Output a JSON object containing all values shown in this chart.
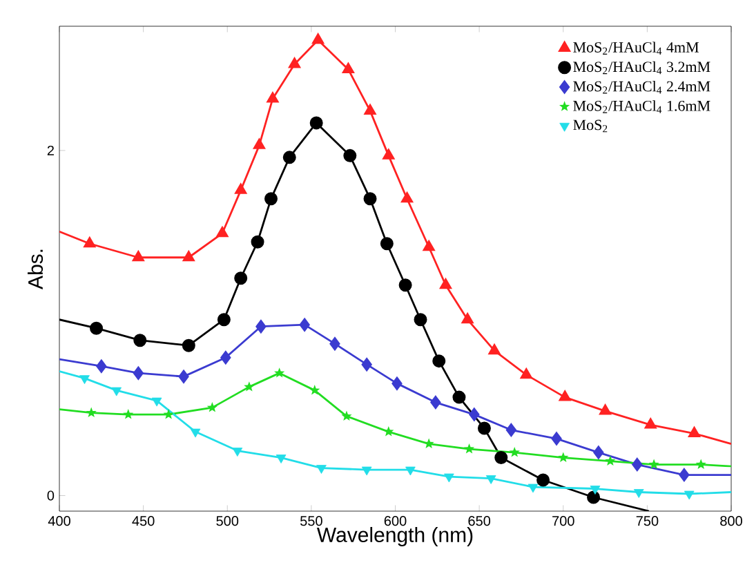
{
  "chart_data": {
    "type": "line",
    "xlabel": "Wavelength (nm)",
    "ylabel": "Abs.",
    "xlim": [
      400,
      800
    ],
    "ylim": [
      -0.09,
      2.72
    ],
    "xticks": [
      400,
      450,
      500,
      550,
      600,
      650,
      700,
      750,
      800
    ],
    "yticks": [
      0,
      2
    ],
    "legend": "top right",
    "series": [
      {
        "type": "line",
        "marker": "none",
        "color": "#ff2222",
        "x": [
          400,
          418,
          447,
          477,
          497,
          508,
          519,
          527,
          540,
          554,
          572,
          585,
          596,
          607,
          620,
          630,
          643,
          659,
          678,
          701,
          725,
          752,
          778,
          800
        ],
        "values": [
          1.53,
          1.46,
          1.38,
          1.38,
          1.52,
          1.77,
          2.03,
          2.3,
          2.5,
          2.64,
          2.47,
          2.23,
          1.97,
          1.72,
          1.44,
          1.22,
          1.02,
          0.84,
          0.7,
          0.57,
          0.49,
          0.41,
          0.36,
          0.3
        ]
      },
      {
        "type": "line",
        "marker": "none",
        "color": "#000000",
        "x": [
          400,
          422,
          448,
          477,
          498,
          508,
          518,
          526,
          537,
          553,
          573,
          585,
          595,
          606,
          615,
          626,
          638,
          653,
          663,
          688,
          718,
          751
        ],
        "values": [
          1.02,
          0.97,
          0.9,
          0.87,
          1.02,
          1.26,
          1.47,
          1.72,
          1.96,
          2.16,
          1.97,
          1.72,
          1.46,
          1.22,
          1.02,
          0.78,
          0.57,
          0.39,
          0.22,
          0.09,
          -0.01,
          -0.09
        ]
      },
      {
        "type": "line",
        "marker": "none",
        "color": "#3b3bd0",
        "x": [
          400,
          425,
          447,
          474,
          499,
          520,
          546,
          564,
          583,
          601,
          624,
          647,
          669,
          696,
          721,
          744,
          772,
          800
        ],
        "values": [
          0.79,
          0.75,
          0.71,
          0.69,
          0.8,
          0.98,
          0.99,
          0.88,
          0.76,
          0.65,
          0.54,
          0.47,
          0.38,
          0.33,
          0.25,
          0.18,
          0.12,
          0.12
        ]
      },
      {
        "type": "line",
        "marker": "none",
        "color": "#22dd22",
        "x": [
          400,
          419,
          441,
          465,
          491,
          513,
          531,
          552,
          571,
          596,
          620,
          644,
          671,
          700,
          728,
          754,
          782,
          800
        ],
        "values": [
          0.5,
          0.48,
          0.47,
          0.47,
          0.51,
          0.63,
          0.71,
          0.61,
          0.46,
          0.37,
          0.3,
          0.27,
          0.25,
          0.22,
          0.2,
          0.18,
          0.18,
          0.17
        ]
      },
      {
        "type": "line",
        "marker": "none",
        "color": "#22dde8",
        "x": [
          400,
          415,
          434,
          458,
          481,
          506,
          532,
          556,
          583,
          609,
          632,
          657,
          682,
          719,
          745,
          775,
          800
        ],
        "values": [
          0.72,
          0.68,
          0.61,
          0.55,
          0.37,
          0.26,
          0.22,
          0.16,
          0.15,
          0.15,
          0.11,
          0.1,
          0.05,
          0.04,
          0.02,
          0.01,
          0.02
        ]
      },
      {
        "type": "scatter",
        "marker": "triangle",
        "name": "MoS$_{2}$/HAuCl$_{4}$ 4mM",
        "color": "#ff2222",
        "x": [
          418,
          447,
          477,
          497,
          508,
          519,
          527,
          540,
          554,
          572,
          585,
          596,
          607,
          620,
          630,
          643,
          659,
          678,
          701,
          725,
          752,
          778
        ],
        "values": [
          1.46,
          1.38,
          1.38,
          1.52,
          1.77,
          2.03,
          2.3,
          2.5,
          2.64,
          2.47,
          2.23,
          1.97,
          1.72,
          1.44,
          1.22,
          1.02,
          0.84,
          0.7,
          0.57,
          0.49,
          0.41,
          0.36
        ]
      },
      {
        "type": "scatter",
        "marker": "circle",
        "name": "MoS$_{2}$/HAuCl$_{4}$ 3.2mM",
        "color": "#000000",
        "x": [
          422,
          448,
          477,
          498,
          508,
          518,
          526,
          537,
          553,
          573,
          585,
          595,
          606,
          615,
          626,
          638,
          653,
          663,
          688,
          718
        ],
        "values": [
          0.97,
          0.9,
          0.87,
          1.02,
          1.26,
          1.47,
          1.72,
          1.96,
          2.16,
          1.97,
          1.72,
          1.46,
          1.22,
          1.02,
          0.78,
          0.57,
          0.39,
          0.22,
          0.09,
          -0.01
        ]
      },
      {
        "type": "scatter",
        "marker": "diamond",
        "name": "MoS$_{2}$/HAuCl$_{4}$ 2.4mM",
        "color": "#3b3bd0",
        "x": [
          425,
          447,
          474,
          499,
          520,
          546,
          564,
          583,
          601,
          624,
          647,
          669,
          696,
          721,
          744,
          772
        ],
        "values": [
          0.75,
          0.71,
          0.69,
          0.8,
          0.98,
          0.99,
          0.88,
          0.76,
          0.65,
          0.54,
          0.47,
          0.38,
          0.33,
          0.25,
          0.18,
          0.12
        ]
      },
      {
        "type": "scatter",
        "marker": "star",
        "name": "MoS$_{2}$/HAuCl$_{4}$ 1.6mM",
        "color": "#22dd22",
        "x": [
          419,
          441,
          465,
          491,
          513,
          531,
          552,
          571,
          596,
          620,
          644,
          671,
          700,
          728,
          754,
          782
        ],
        "values": [
          0.48,
          0.47,
          0.47,
          0.51,
          0.63,
          0.71,
          0.61,
          0.46,
          0.37,
          0.3,
          0.27,
          0.25,
          0.22,
          0.2,
          0.18,
          0.18
        ]
      },
      {
        "type": "scatter",
        "marker": "triangle_down",
        "name": "MoS$_{2}$",
        "color": "#22dde8",
        "x": [
          415,
          434,
          458,
          481,
          506,
          532,
          556,
          583,
          609,
          632,
          657,
          682,
          719,
          745,
          775
        ],
        "values": [
          0.68,
          0.61,
          0.55,
          0.37,
          0.26,
          0.22,
          0.16,
          0.15,
          0.15,
          0.11,
          0.1,
          0.05,
          0.04,
          0.02,
          0.01
        ]
      }
    ]
  }
}
